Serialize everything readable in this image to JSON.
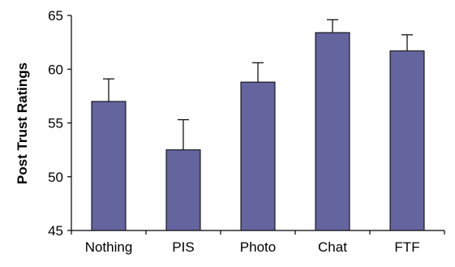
{
  "chart_data": {
    "type": "bar",
    "title": "",
    "xlabel": "",
    "ylabel": "Post Trust Ratings",
    "categories": [
      "Nothing",
      "PIS",
      "Photo",
      "Chat",
      "FTF"
    ],
    "values": [
      57.0,
      52.5,
      58.8,
      63.4,
      61.7
    ],
    "error_upper": [
      2.1,
      2.8,
      1.8,
      1.2,
      1.5
    ],
    "ylim": [
      45,
      65
    ],
    "yticks": [
      45,
      50,
      55,
      60,
      65
    ],
    "grid": false,
    "legend": "none",
    "colors": {
      "bar_fill": "#64649e",
      "bar_stroke": "#000000",
      "axis": "#000000",
      "error_bar": "#000000"
    }
  }
}
